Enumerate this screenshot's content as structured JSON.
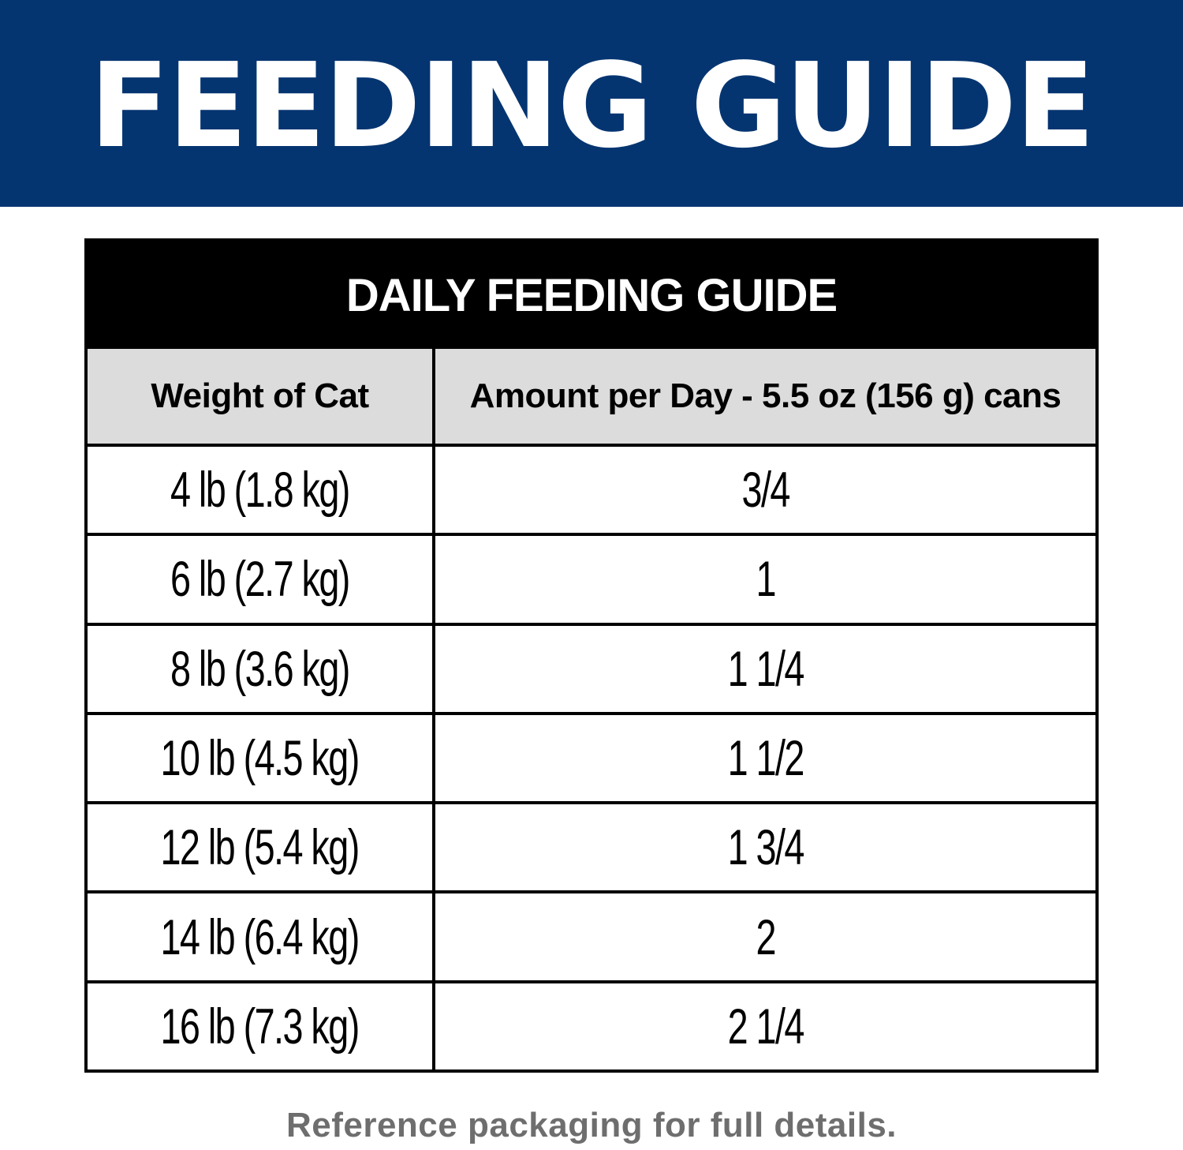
{
  "banner": {
    "title": "FEEDING GUIDE",
    "background_color": "#053571",
    "text_color": "#ffffff"
  },
  "table": {
    "title": "DAILY FEEDING GUIDE",
    "columns": [
      "Weight of Cat",
      "Amount per Day - 5.5 oz (156 g) cans"
    ],
    "rows": [
      {
        "weight": "4 lb (1.8 kg)",
        "amount": "3/4"
      },
      {
        "weight": "6 lb (2.7 kg)",
        "amount": "1"
      },
      {
        "weight": "8 lb (3.6 kg)",
        "amount": "1 1/4"
      },
      {
        "weight": "10 lb (4.5 kg)",
        "amount": "1 1/2"
      },
      {
        "weight": "12 lb (5.4 kg)",
        "amount": "1 3/4"
      },
      {
        "weight": "14 lb (6.4 kg)",
        "amount": "2"
      },
      {
        "weight": "16 lb (7.3 kg)",
        "amount": "2 1/4"
      }
    ],
    "header_background": "#dcdcdc"
  },
  "footnote": "Reference packaging for full details."
}
